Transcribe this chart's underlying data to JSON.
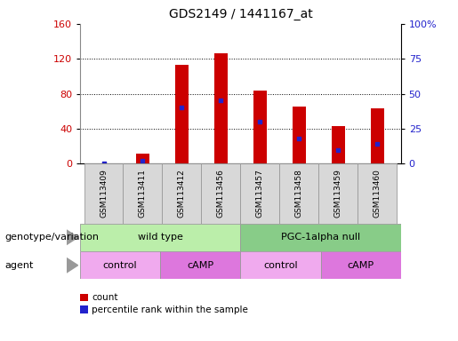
{
  "title": "GDS2149 / 1441167_at",
  "samples": [
    "GSM113409",
    "GSM113411",
    "GSM113412",
    "GSM113456",
    "GSM113457",
    "GSM113458",
    "GSM113459",
    "GSM113460"
  ],
  "counts": [
    0,
    12,
    113,
    126,
    84,
    65,
    43,
    63
  ],
  "percentile_ranks": [
    0,
    2,
    40,
    45,
    30,
    18,
    10,
    14
  ],
  "ylim_left": [
    0,
    160
  ],
  "ylim_right": [
    0,
    100
  ],
  "yticks_left": [
    0,
    40,
    80,
    120,
    160
  ],
  "ytick_labels_left": [
    "0",
    "40",
    "80",
    "120",
    "160"
  ],
  "yticks_right_vals": [
    0,
    25,
    50,
    75,
    100
  ],
  "ytick_labels_right": [
    "0",
    "25",
    "50",
    "75",
    "100%"
  ],
  "bar_color": "#cc0000",
  "dot_color": "#2222cc",
  "bar_width": 0.35,
  "genotype_groups": [
    {
      "label": "wild type",
      "start": 0,
      "end": 4,
      "color": "#bbeeaa"
    },
    {
      "label": "PGC-1alpha null",
      "start": 4,
      "end": 8,
      "color": "#88cc88"
    }
  ],
  "agent_groups": [
    {
      "label": "control",
      "start": 0,
      "end": 2,
      "color": "#f0aaee"
    },
    {
      "label": "cAMP",
      "start": 2,
      "end": 4,
      "color": "#dd77dd"
    },
    {
      "label": "control",
      "start": 4,
      "end": 6,
      "color": "#f0aaee"
    },
    {
      "label": "cAMP",
      "start": 6,
      "end": 8,
      "color": "#dd77dd"
    }
  ],
  "left_labels": [
    "genotype/variation",
    "agent"
  ],
  "legend_items": [
    {
      "label": "count",
      "color": "#cc0000"
    },
    {
      "label": "percentile rank within the sample",
      "color": "#2222cc"
    }
  ],
  "grid_color": "#888888",
  "bg_color": "#ffffff",
  "label_bg": "#d8d8d8",
  "title_fontsize": 10,
  "tick_fontsize": 8,
  "label_fontsize": 8,
  "row_label_fontsize": 8
}
